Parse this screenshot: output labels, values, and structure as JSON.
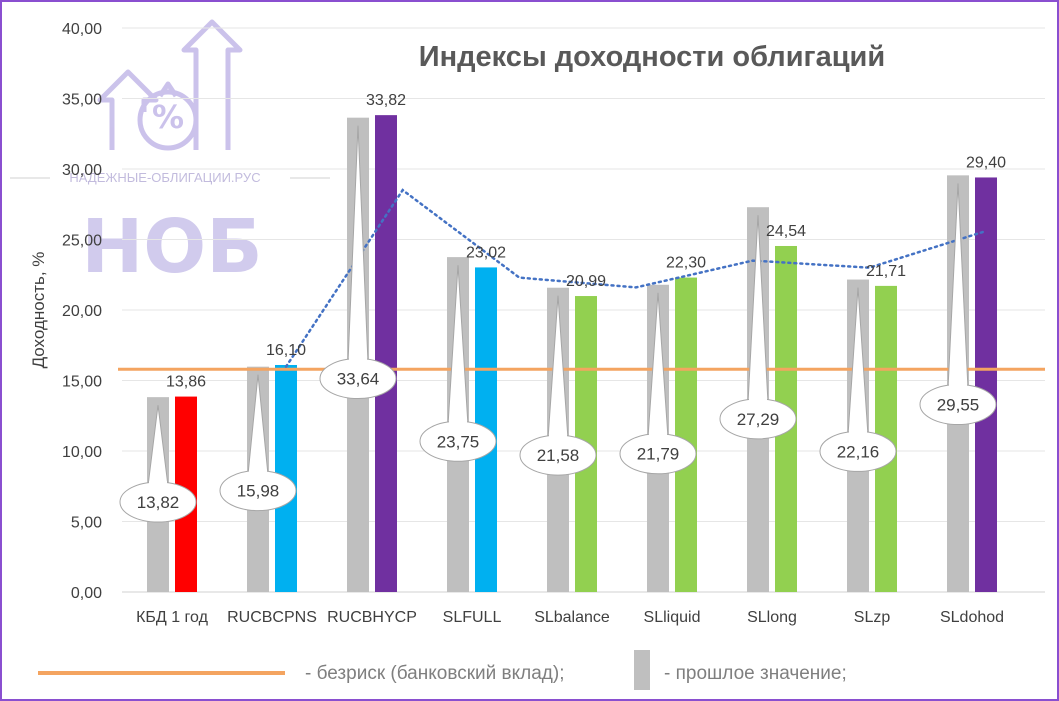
{
  "watermark": {
    "site": "НАДЕЖНЫЕ-ОБЛИГАЦИИ.РУС",
    "brand": "НОБ",
    "icon": "percent-growth-icon"
  },
  "chart_data": {
    "type": "bar",
    "title": "Индексы доходности облигаций",
    "ylabel": "Доходность, %",
    "xlabel": "",
    "ylim": [
      0,
      40
    ],
    "yticks": [
      "0,00",
      "5,00",
      "10,00",
      "15,00",
      "20,00",
      "25,00",
      "30,00",
      "35,00",
      "40,00"
    ],
    "grid": true,
    "categories": [
      "КБД 1 год",
      "RUCBCPNS",
      "RUCBHYCP",
      "SLFULL",
      "SLbalance",
      "SLliquid",
      "SLlong",
      "SLzp",
      "SLdohod"
    ],
    "series": [
      {
        "name": "прошлое значение",
        "values": [
          13.82,
          15.98,
          33.64,
          23.75,
          21.58,
          21.79,
          27.29,
          22.16,
          29.55
        ],
        "labels": [
          "13,82",
          "15,98",
          "33,64",
          "23,75",
          "21,58",
          "21,79",
          "27,29",
          "22,16",
          "29,55"
        ],
        "color": "#bfbfbf"
      },
      {
        "values": [
          13.86,
          16.1,
          33.82,
          23.02,
          20.99,
          22.3,
          24.54,
          21.71,
          29.4
        ],
        "labels": [
          "13,86",
          "16,10",
          "33,82",
          "23,02",
          "20,99",
          "22,30",
          "24,54",
          "21,71",
          "29,40"
        ],
        "colors": [
          "#ff0000",
          "#00b0f0",
          "#7030a0",
          "#00b0f0",
          "#92d050",
          "#92d050",
          "#92d050",
          "#92d050",
          "#7030a0"
        ]
      }
    ],
    "trendline": {
      "style": "dotted",
      "color": "#4472c4",
      "x_start": "RUCBCPNS",
      "x_end": "SLdohod",
      "values": [
        15.98,
        28.5,
        22.3,
        21.6,
        23.5,
        23.0,
        25.6
      ]
    },
    "reference_line": {
      "name": "безриск (банковский вклад)",
      "value": 15.8,
      "color": "#f4a460"
    },
    "legend": {
      "placement": "bottom",
      "items": [
        {
          "text": "- безриск (банковский вклад);",
          "marker": "line",
          "color": "#f4a460"
        },
        {
          "text": "- прошлое значение;",
          "marker": "bar",
          "color": "#bfbfbf"
        }
      ]
    }
  }
}
